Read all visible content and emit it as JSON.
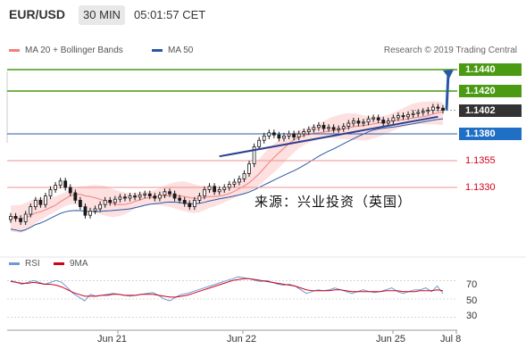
{
  "header": {
    "symbol": "EUR/USD",
    "timeframe": "30 MIN",
    "time": "05:01:57 CET"
  },
  "legend": {
    "ma20": "MA 20 + Bollinger Bands",
    "ma50": "MA 50",
    "research": "Research © 2019 Trading Central"
  },
  "colors": {
    "green": "#4a9a12",
    "blue_line": "#2a57a4",
    "blue_tag": "#1f6fc5",
    "red": "#e02020",
    "price_tag": "#333333",
    "candle": "#1a1a1a",
    "band": "#fde0e0"
  },
  "levels": [
    {
      "value": 1.144,
      "label": "1.1440",
      "style": "green-tag"
    },
    {
      "value": 1.142,
      "label": "1.1420",
      "style": "green-tag"
    },
    {
      "value": 1.1402,
      "label": "1.1402",
      "style": "price-tag"
    },
    {
      "value": 1.138,
      "label": "1.1380",
      "style": "blue-tag"
    },
    {
      "value": 1.1355,
      "label": "1.1355",
      "style": "red-text"
    },
    {
      "value": 1.133,
      "label": "1.1330",
      "style": "red-text"
    }
  ],
  "watermark": "来源：兴业投资（英国）",
  "rsi_legend": {
    "rsi": "RSI",
    "ma9": "9MA"
  },
  "rsi_ticks": [
    "70",
    "50",
    "30"
  ],
  "x_ticks": [
    "Jun 21",
    "Jun 22",
    "Jun 25",
    "Jul 8"
  ],
  "chart_data": {
    "type": "candlestick",
    "instrument": "EUR/USD",
    "interval": "30 MIN",
    "price_range": [
      1.127,
      1.145
    ],
    "close": [
      1.1303,
      1.1301,
      1.1298,
      1.1305,
      1.1312,
      1.1318,
      1.1314,
      1.1322,
      1.1328,
      1.1332,
      1.1336,
      1.133,
      1.1325,
      1.1318,
      1.1312,
      1.1304,
      1.1308,
      1.131,
      1.1314,
      1.1318,
      1.1316,
      1.1319,
      1.1321,
      1.132,
      1.1322,
      1.1321,
      1.1323,
      1.1324,
      1.1322,
      1.132,
      1.1323,
      1.1326,
      1.1324,
      1.132,
      1.1318,
      1.1315,
      1.1312,
      1.1318,
      1.1322,
      1.1328,
      1.1331,
      1.1326,
      1.1328,
      1.133,
      1.1333,
      1.1335,
      1.1338,
      1.1343,
      1.1352,
      1.1368,
      1.1374,
      1.1378,
      1.1381,
      1.1379,
      1.1376,
      1.1378,
      1.138,
      1.1377,
      1.138,
      1.1382,
      1.1384,
      1.1386,
      1.1388,
      1.1385,
      1.1386,
      1.1384,
      1.1385,
      1.1387,
      1.139,
      1.1392,
      1.139,
      1.1391,
      1.1394,
      1.1395,
      1.1393,
      1.139,
      1.1392,
      1.1395,
      1.1397,
      1.1396,
      1.1398,
      1.1399,
      1.14,
      1.1401,
      1.1402,
      1.1405,
      1.1404,
      1.1402
    ],
    "rsi": [
      70,
      68,
      66,
      68,
      70,
      68,
      66,
      68,
      70,
      68,
      62,
      56,
      52,
      48,
      55,
      53,
      54,
      55,
      56,
      55,
      54,
      53,
      54,
      55,
      56,
      57,
      54,
      50,
      48,
      52,
      55,
      56,
      58,
      60,
      62,
      64,
      66,
      68,
      70,
      72,
      74,
      73,
      72,
      70,
      69,
      70,
      68,
      66,
      65,
      66,
      64,
      60,
      56,
      58,
      60,
      59,
      60,
      62,
      60,
      58,
      56,
      58,
      60,
      58,
      57,
      58,
      60,
      62,
      58,
      56,
      58,
      60,
      60,
      62,
      58,
      64,
      56
    ],
    "rsi_ma9": [
      69,
      68,
      67,
      67,
      68,
      67,
      66,
      66,
      65,
      63,
      60,
      57,
      55,
      53,
      53,
      53,
      54,
      54,
      55,
      55,
      54,
      54,
      54,
      55,
      55,
      55,
      54,
      53,
      52,
      52,
      53,
      54,
      56,
      58,
      60,
      62,
      64,
      66,
      68,
      70,
      71,
      72,
      72,
      71,
      70,
      69,
      68,
      67,
      66,
      65,
      64,
      62,
      60,
      59,
      59,
      59,
      59,
      60,
      60,
      59,
      58,
      58,
      58,
      58,
      58,
      58,
      59,
      59,
      59,
      58,
      58,
      58,
      59,
      59,
      59,
      60,
      59
    ],
    "rsi_range": [
      20,
      80
    ],
    "rsi_levels": [
      70,
      50,
      30
    ],
    "x_tick_labels": [
      "Jun 21",
      "Jun 22",
      "Jun 25",
      "Jul 8"
    ],
    "target_arrow": {
      "from": 1.1402,
      "to": 1.144
    },
    "support_trendline": true,
    "legend": [
      "MA 20 + Bollinger Bands",
      "MA 50"
    ]
  }
}
